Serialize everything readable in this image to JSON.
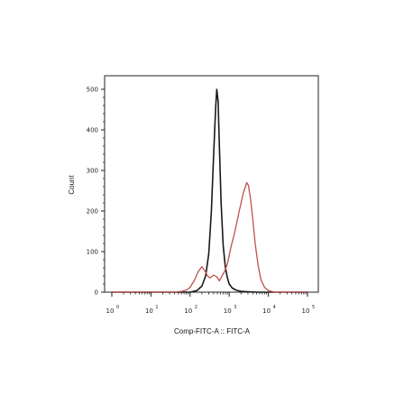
{
  "chart_data": {
    "type": "line",
    "title": "",
    "xlabel": "Comp-FITC-A :: FITC-A",
    "ylabel": "Count",
    "x_scale": "log",
    "xlim": [
      1,
      100000
    ],
    "ylim": [
      0,
      500
    ],
    "y_ticks": [
      "0",
      "100",
      "200",
      "300",
      "400",
      "500"
    ],
    "x_ticks": [
      {
        "base": "10",
        "exp": "0",
        "value": 1
      },
      {
        "base": "10",
        "exp": "1",
        "value": 10
      },
      {
        "base": "10",
        "exp": "2",
        "value": 100
      },
      {
        "base": "10",
        "exp": "3",
        "value": 1000
      },
      {
        "base": "10",
        "exp": "4",
        "value": 10000
      },
      {
        "base": "10",
        "exp": "5",
        "value": 100000
      }
    ],
    "grid": false,
    "series": [
      {
        "color": "#1a1a1a",
        "x": [
          1,
          100,
          150,
          200,
          250,
          300,
          350,
          400,
          450,
          480,
          520,
          560,
          620,
          700,
          800,
          900,
          1000,
          1200,
          1500,
          2000,
          3000,
          5000,
          100000
        ],
        "y": [
          0,
          0,
          4,
          15,
          40,
          95,
          200,
          340,
          455,
          500,
          470,
          360,
          220,
          115,
          60,
          35,
          20,
          10,
          5,
          2,
          1,
          0,
          0
        ]
      },
      {
        "color": "#c0504d",
        "x": [
          1,
          40,
          60,
          80,
          100,
          130,
          160,
          200,
          240,
          280,
          320,
          400,
          480,
          560,
          650,
          750,
          900,
          1100,
          1400,
          1800,
          2300,
          2800,
          3100,
          3500,
          4000,
          4600,
          5500,
          6500,
          8000,
          10000,
          12000,
          15000,
          100000
        ],
        "y": [
          0,
          0,
          2,
          5,
          12,
          30,
          50,
          63,
          52,
          40,
          35,
          42,
          38,
          28,
          40,
          50,
          70,
          110,
          150,
          200,
          245,
          270,
          263,
          230,
          180,
          120,
          65,
          30,
          12,
          4,
          2,
          0,
          0
        ]
      }
    ]
  }
}
